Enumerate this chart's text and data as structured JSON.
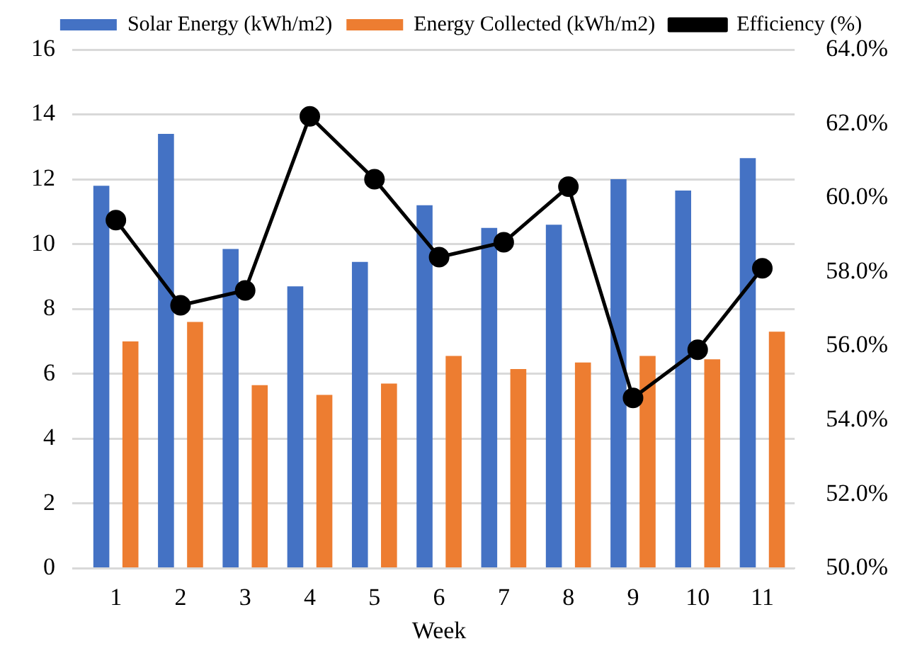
{
  "chart_data": {
    "type": "bar",
    "xlabel": "Week",
    "categories": [
      "1",
      "2",
      "3",
      "4",
      "5",
      "6",
      "7",
      "8",
      "9",
      "10",
      "11"
    ],
    "series": [
      {
        "name": "Solar Energy (kWh/m2)",
        "color": "#4472c4",
        "values": [
          11.8,
          13.4,
          9.85,
          8.7,
          9.45,
          11.2,
          10.5,
          10.6,
          12.0,
          11.65,
          12.65
        ]
      },
      {
        "name": "Energy Collected (kWh/m2)",
        "color": "#ed7d31",
        "values": [
          7.0,
          7.6,
          5.65,
          5.35,
          5.7,
          6.55,
          6.15,
          6.35,
          6.55,
          6.45,
          7.3
        ]
      },
      {
        "name": "Efficiency (%)",
        "type": "line",
        "axis": "y2",
        "color": "#000000",
        "values": [
          59.4,
          57.1,
          57.5,
          62.2,
          60.5,
          58.4,
          58.8,
          60.3,
          54.6,
          55.9,
          58.1
        ]
      }
    ],
    "ylim": [
      0,
      16
    ],
    "yticks": [
      0,
      2,
      4,
      6,
      8,
      10,
      12,
      14,
      16
    ],
    "y2lim": [
      50,
      64
    ],
    "y2ticks": [
      {
        "value": 50,
        "label": "50.0%"
      },
      {
        "value": 52,
        "label": "52.0%"
      },
      {
        "value": 54,
        "label": "54.0%"
      },
      {
        "value": 56,
        "label": "56.0%"
      },
      {
        "value": 58,
        "label": "58.0%"
      },
      {
        "value": 60,
        "label": "60.0%"
      },
      {
        "value": 62,
        "label": "62.0%"
      },
      {
        "value": 64,
        "label": "64.0%"
      }
    ],
    "grid": "y",
    "legend": "top",
    "marker": "circle",
    "line_style": "solid"
  }
}
